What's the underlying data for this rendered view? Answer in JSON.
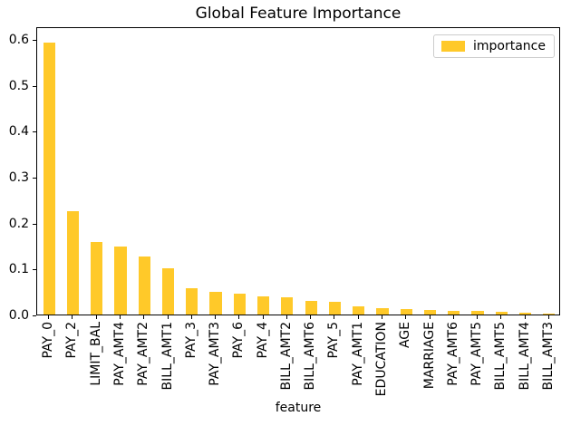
{
  "figure": {
    "background": "#ffffff",
    "text_color": "#000000",
    "spine_color": "#000000"
  },
  "chart_data": {
    "type": "bar",
    "title": "Global Feature Importance",
    "xlabel": "feature",
    "ylabel": "",
    "legend": {
      "label": "importance",
      "position": "upper right"
    },
    "bar_color": "#FFC929",
    "grid": false,
    "x_tick_rotation": 90,
    "ylim": [
      0,
      0.628
    ],
    "yticks": [
      0.0,
      0.1,
      0.2,
      0.3,
      0.4,
      0.5,
      0.6
    ],
    "categories": [
      "PAY_0",
      "PAY_2",
      "LIMIT_BAL",
      "PAY_AMT4",
      "PAY_AMT2",
      "BILL_AMT1",
      "PAY_3",
      "PAY_AMT3",
      "PAY_6",
      "PAY_4",
      "BILL_AMT2",
      "BILL_AMT6",
      "PAY_5",
      "PAY_AMT1",
      "EDUCATION",
      "AGE",
      "MARRIAGE",
      "PAY_AMT6",
      "PAY_AMT5",
      "BILL_AMT5",
      "BILL_AMT4",
      "BILL_AMT3"
    ],
    "values": [
      0.593,
      0.225,
      0.158,
      0.148,
      0.126,
      0.1,
      0.057,
      0.05,
      0.045,
      0.04,
      0.038,
      0.03,
      0.028,
      0.017,
      0.013,
      0.011,
      0.009,
      0.008,
      0.007,
      0.006,
      0.003,
      0.001
    ]
  }
}
